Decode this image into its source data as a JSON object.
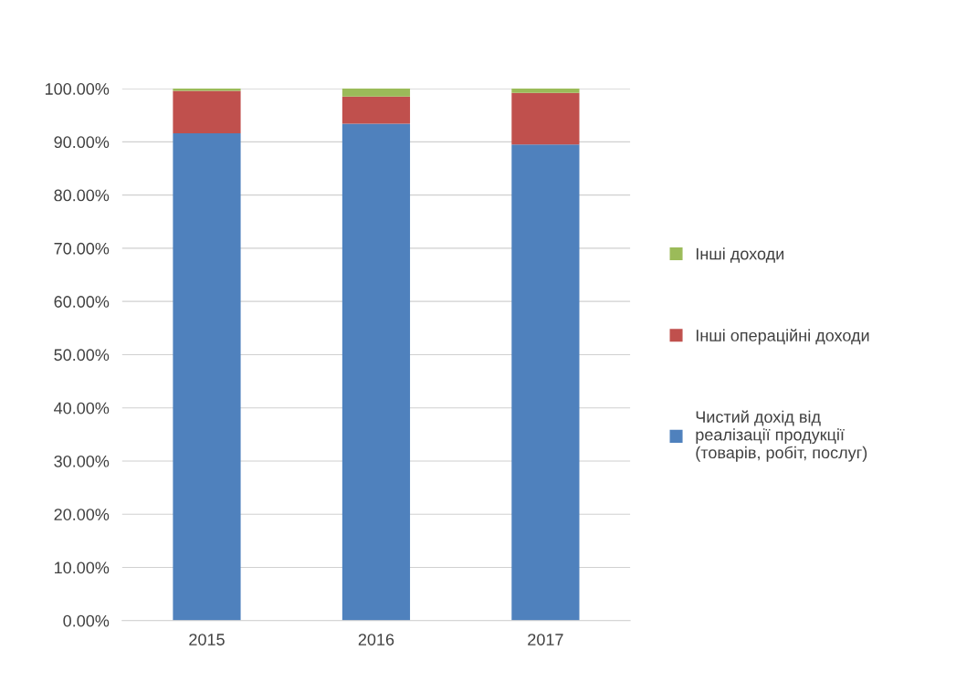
{
  "chart_data": {
    "type": "bar",
    "stacked": true,
    "categories": [
      "2015",
      "2016",
      "2017"
    ],
    "series": [
      {
        "name": "Чистий дохід від реалізації продукції (товарів, робіт, послуг)",
        "color": "#4f81bd",
        "values": [
          91.6,
          93.4,
          89.5
        ]
      },
      {
        "name": "Інші операційні доходи",
        "color": "#c0504d",
        "values": [
          8.0,
          5.1,
          9.7
        ]
      },
      {
        "name": "Інші доходи",
        "color": "#9bbb59",
        "values": [
          0.4,
          1.5,
          0.8
        ]
      }
    ],
    "ylim": [
      0,
      100
    ],
    "yticks": [
      {
        "value": 0,
        "label": "0.00%"
      },
      {
        "value": 10,
        "label": "10.00%"
      },
      {
        "value": 20,
        "label": "20.00%"
      },
      {
        "value": 30,
        "label": "30.00%"
      },
      {
        "value": 40,
        "label": "40.00%"
      },
      {
        "value": 50,
        "label": "50.00%"
      },
      {
        "value": 60,
        "label": "60.00%"
      },
      {
        "value": 70,
        "label": "70.00%"
      },
      {
        "value": 80,
        "label": "80.00%"
      },
      {
        "value": 90,
        "label": "90.00%"
      },
      {
        "value": 100,
        "label": "100.00%"
      }
    ],
    "grid": "y",
    "legend": "right"
  }
}
